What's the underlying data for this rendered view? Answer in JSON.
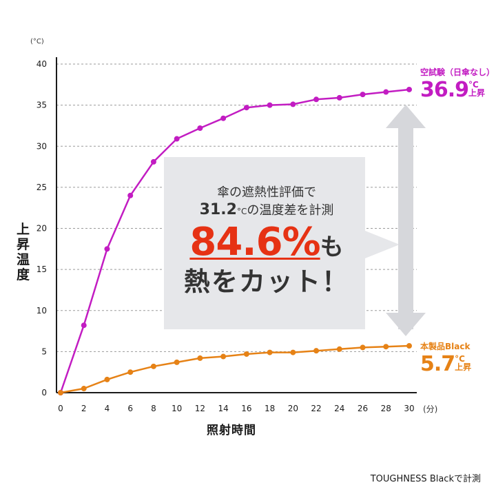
{
  "chart_data": {
    "type": "line",
    "x": [
      0,
      2,
      4,
      6,
      8,
      10,
      12,
      14,
      16,
      18,
      20,
      22,
      24,
      26,
      28,
      30
    ],
    "series": [
      {
        "name": "空試験（日傘なし）",
        "color": "#c21cc2",
        "values": [
          0,
          8.2,
          17.5,
          24,
          28.1,
          30.9,
          32.2,
          33.4,
          34.7,
          35.0,
          35.1,
          35.7,
          35.9,
          36.3,
          36.6,
          36.9
        ]
      },
      {
        "name": "本製品Black",
        "color": "#e68216",
        "values": [
          0,
          0.5,
          1.6,
          2.5,
          3.2,
          3.7,
          4.2,
          4.4,
          4.7,
          4.9,
          4.9,
          5.1,
          5.3,
          5.5,
          5.6,
          5.7
        ]
      }
    ],
    "xticks": [
      "0",
      "2",
      "4",
      "6",
      "8",
      "10",
      "12",
      "14",
      "16",
      "18",
      "20",
      "22",
      "24",
      "26",
      "28",
      "30"
    ],
    "yticks": [
      "0",
      "5",
      "10",
      "15",
      "20",
      "25",
      "30",
      "35",
      "40"
    ],
    "xlim": [
      0,
      30
    ],
    "ylim": [
      0,
      40
    ],
    "grid": "horizontal-dashed"
  },
  "labels": {
    "ylabel_chars": [
      "上",
      "昇",
      "温",
      "度"
    ],
    "yunit": "(°C)",
    "xunit": "(分)",
    "xlabel": "照射時間",
    "footer": "TOUGHNESS Blackで計測"
  },
  "callouts": {
    "purple": {
      "title": "空試験（日傘なし）",
      "value": "36.9",
      "unit1": "°C",
      "unit2": "上昇"
    },
    "orange": {
      "title": "本製品Black",
      "value": "5.7",
      "unit1": "°C",
      "unit2": "上昇"
    }
  },
  "box": {
    "line1": "傘の遮熱性評価で",
    "line2_num": "31.2",
    "line2_unit": "°C",
    "line2_rest": "の温度差を計測",
    "pct": "84.6%",
    "mo": "も",
    "line4": "熱をカット！"
  },
  "colors": {
    "purple": "#c21cc2",
    "orange": "#e68216",
    "highlight": "#e63214",
    "box": "#e6e7ea",
    "arrow": "#d6d7db"
  }
}
